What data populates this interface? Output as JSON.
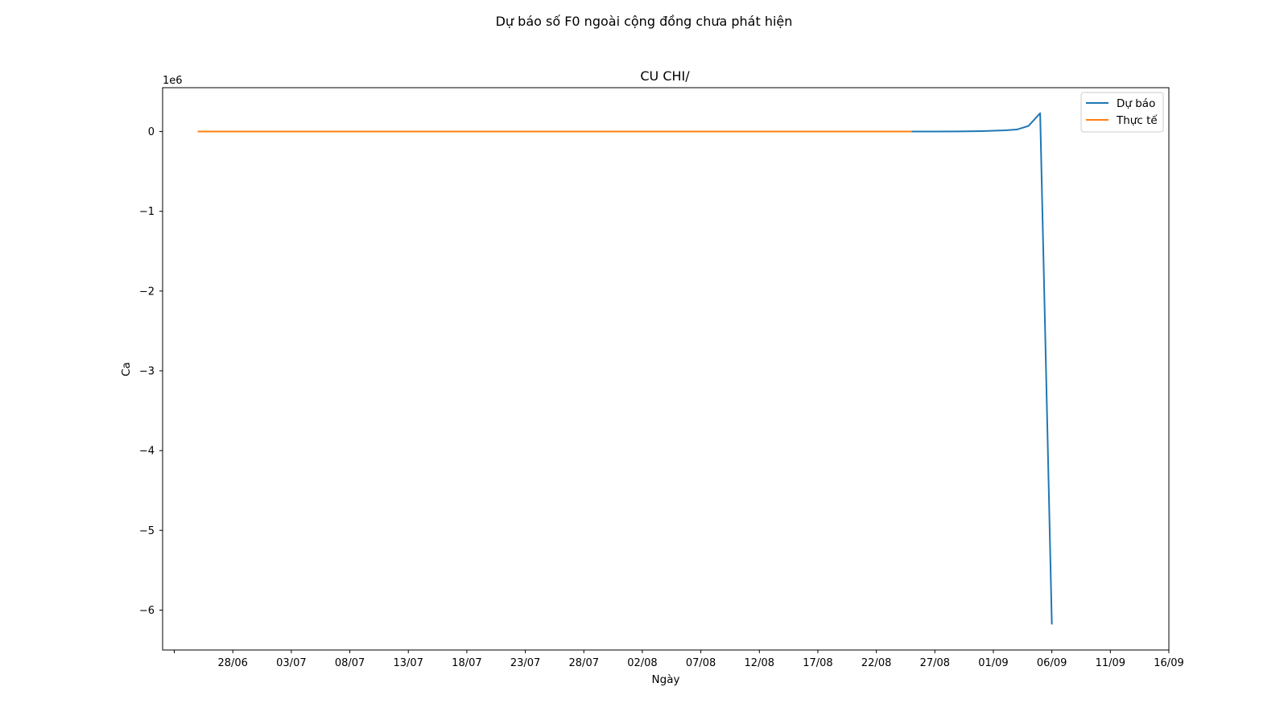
{
  "chart_data": {
    "type": "line",
    "suptitle": "Dự báo số F0 ngoài cộng đồng chưa phát hiện",
    "title": "CU CHI/",
    "xlabel": "Ngày",
    "ylabel": "Ca",
    "y_offset_label": "1e6",
    "y_scale": 1000000,
    "x_axis": {
      "start": "2021-06-22",
      "end": "2021-09-16",
      "tick_dates": [
        "2021-06-23",
        "2021-06-28",
        "2021-07-03",
        "2021-07-08",
        "2021-07-13",
        "2021-07-18",
        "2021-07-23",
        "2021-07-28",
        "2021-08-02",
        "2021-08-07",
        "2021-08-12",
        "2021-08-17",
        "2021-08-22",
        "2021-08-27",
        "2021-09-01",
        "2021-09-06",
        "2021-09-11",
        "2021-09-16"
      ],
      "tick_labels": [
        "",
        "28/06",
        "03/07",
        "08/07",
        "13/07",
        "18/07",
        "23/07",
        "28/07",
        "02/08",
        "07/08",
        "12/08",
        "17/08",
        "22/08",
        "27/08",
        "01/09",
        "06/09",
        "11/09",
        "16/09"
      ]
    },
    "y_axis": {
      "range": [
        -6500000,
        550000
      ],
      "ticks": [
        0,
        -1000000,
        -2000000,
        -3000000,
        -4000000,
        -5000000,
        -6000000
      ],
      "tick_labels": [
        "0",
        "−1",
        "−2",
        "−3",
        "−4",
        "−5",
        "−6"
      ]
    },
    "legend": {
      "placement": "top-right"
    },
    "grid": false,
    "series": [
      {
        "name": "Dự báo",
        "color": "#1f77b4",
        "points": [
          [
            "2021-08-25",
            0
          ],
          [
            "2021-08-27",
            500
          ],
          [
            "2021-08-29",
            2000
          ],
          [
            "2021-08-31",
            6000
          ],
          [
            "2021-09-01",
            10000
          ],
          [
            "2021-09-02",
            15000
          ],
          [
            "2021-09-03",
            25000
          ],
          [
            "2021-09-04",
            70000
          ],
          [
            "2021-09-05",
            230000
          ],
          [
            "2021-09-06",
            -6180000
          ]
        ]
      },
      {
        "name": "Thực tế",
        "color": "#ff7f0e",
        "points": [
          [
            "2021-06-25",
            0
          ],
          [
            "2021-07-15",
            0
          ],
          [
            "2021-08-05",
            0
          ],
          [
            "2021-08-25",
            0
          ]
        ]
      }
    ]
  }
}
